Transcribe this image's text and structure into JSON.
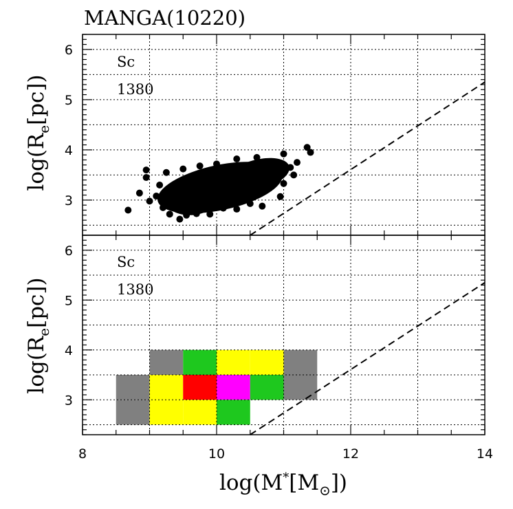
{
  "chart_data": [
    {
      "type": "scatter",
      "title": "MANGA(10220)",
      "xlabel": "log(M*[M⊙])",
      "ylabel": "log(Re[pc])",
      "ylabel_parts": {
        "pre": "log(R",
        "sub": "e",
        "post": "[pc])"
      },
      "xlim": [
        8,
        14
      ],
      "ylim": [
        2.3,
        6.3
      ],
      "x_ticks": [
        8,
        10,
        12,
        14
      ],
      "y_ticks": [
        3,
        4,
        5,
        6
      ],
      "grid": true,
      "label_type": "Sc",
      "label_count": "1380",
      "reference_line": {
        "x": [
          10.5,
          14
        ],
        "y": [
          2.3,
          5.35
        ],
        "style": "dashed"
      },
      "points": [
        [
          8.68,
          2.8
        ],
        [
          8.85,
          3.14
        ],
        [
          8.95,
          3.6
        ],
        [
          8.95,
          3.45
        ],
        [
          9.0,
          2.98
        ],
        [
          9.1,
          3.08
        ],
        [
          9.2,
          2.85
        ],
        [
          9.3,
          2.72
        ],
        [
          9.45,
          2.62
        ],
        [
          9.55,
          2.7
        ],
        [
          9.7,
          2.73
        ],
        [
          9.9,
          2.72
        ],
        [
          10.1,
          2.84
        ],
        [
          10.3,
          2.82
        ],
        [
          10.5,
          2.93
        ],
        [
          10.68,
          2.88
        ],
        [
          10.95,
          3.07
        ],
        [
          11.0,
          3.33
        ],
        [
          11.15,
          3.5
        ],
        [
          11.35,
          4.05
        ],
        [
          11.4,
          3.95
        ],
        [
          11.2,
          3.75
        ],
        [
          11.0,
          3.92
        ],
        [
          10.9,
          3.75
        ],
        [
          10.6,
          3.85
        ],
        [
          10.3,
          3.82
        ],
        [
          10.0,
          3.72
        ],
        [
          9.75,
          3.68
        ],
        [
          9.5,
          3.62
        ],
        [
          9.25,
          3.55
        ],
        [
          9.3,
          3.25
        ],
        [
          9.6,
          3.15
        ],
        [
          9.9,
          3.25
        ],
        [
          10.2,
          3.35
        ],
        [
          10.5,
          3.45
        ],
        [
          10.8,
          3.55
        ],
        [
          9.4,
          2.95
        ],
        [
          9.75,
          3.05
        ],
        [
          10.1,
          3.1
        ],
        [
          10.45,
          3.2
        ],
        [
          10.75,
          3.3
        ],
        [
          9.55,
          3.4
        ],
        [
          9.85,
          3.45
        ],
        [
          10.15,
          3.55
        ],
        [
          10.5,
          3.62
        ],
        [
          9.15,
          3.3
        ],
        [
          11.1,
          3.65
        ],
        [
          10.35,
          3.05
        ]
      ]
    },
    {
      "type": "heatmap",
      "xlabel": "log(M*[M⊙])",
      "ylabel": "log(Re[pc])",
      "ylabel_parts": {
        "pre": "log(R",
        "sub": "e",
        "post": "[pc])"
      },
      "xlabel_parts": {
        "pre": "log(M",
        "sup": "*",
        "mid": "[M",
        "sub": "⊙",
        "post": "])"
      },
      "xlim": [
        8,
        14
      ],
      "ylim": [
        2.3,
        6.3
      ],
      "x_ticks": [
        8,
        10,
        12,
        14
      ],
      "y_ticks": [
        3,
        4,
        5,
        6
      ],
      "grid": true,
      "label_type": "Sc",
      "label_count": "1380",
      "bin_size": 0.5,
      "reference_line": {
        "x": [
          10.5,
          14
        ],
        "y": [
          2.3,
          5.35
        ],
        "style": "dashed"
      },
      "color_levels": {
        "gray": "#808080",
        "yellow": "#ffff00",
        "green": "#1ec81e",
        "red": "#ff0000",
        "magenta": "#ff00ff"
      },
      "cells": [
        {
          "x": 9.0,
          "y": 3.5,
          "level": "gray"
        },
        {
          "x": 9.5,
          "y": 3.5,
          "level": "green"
        },
        {
          "x": 10.0,
          "y": 3.5,
          "level": "yellow"
        },
        {
          "x": 10.5,
          "y": 3.5,
          "level": "yellow"
        },
        {
          "x": 11.0,
          "y": 3.5,
          "level": "gray"
        },
        {
          "x": 8.5,
          "y": 3.0,
          "level": "gray"
        },
        {
          "x": 9.0,
          "y": 3.0,
          "level": "yellow"
        },
        {
          "x": 9.5,
          "y": 3.0,
          "level": "red"
        },
        {
          "x": 10.0,
          "y": 3.0,
          "level": "magenta"
        },
        {
          "x": 10.5,
          "y": 3.0,
          "level": "green"
        },
        {
          "x": 11.0,
          "y": 3.0,
          "level": "gray"
        },
        {
          "x": 8.5,
          "y": 2.5,
          "level": "gray"
        },
        {
          "x": 9.0,
          "y": 2.5,
          "level": "yellow"
        },
        {
          "x": 9.5,
          "y": 2.5,
          "level": "yellow"
        },
        {
          "x": 10.0,
          "y": 2.5,
          "level": "green"
        }
      ]
    }
  ]
}
